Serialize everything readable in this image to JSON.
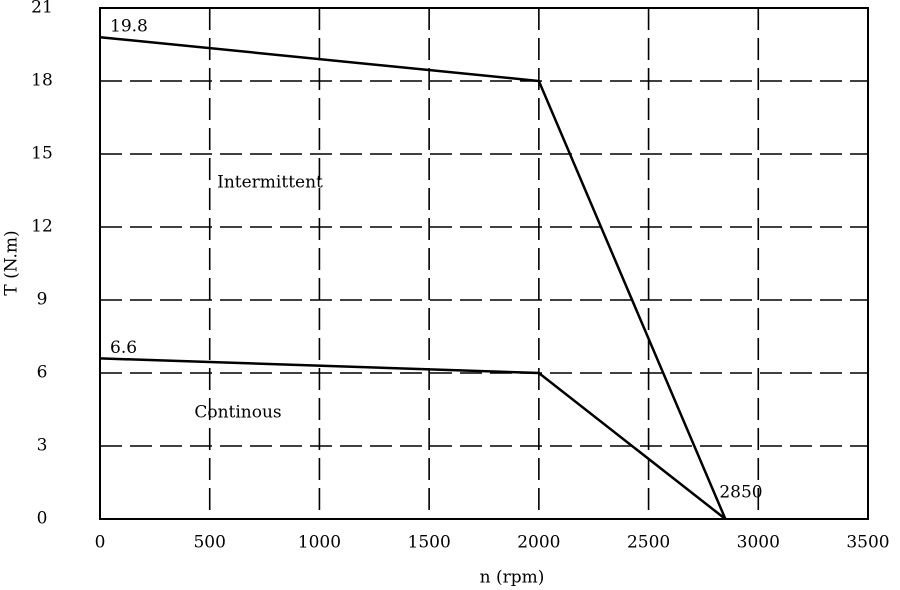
{
  "chart_data": {
    "type": "line",
    "x_label": "n (rpm)",
    "y_label": "T (N.m)",
    "x": [
      0,
      2000,
      2850
    ],
    "series": [
      {
        "name": "Intermittent",
        "color": "#000000",
        "values": [
          19.8,
          18,
          0
        ]
      },
      {
        "name": "Continous",
        "color": "#000000",
        "values": [
          6.6,
          6,
          0
        ]
      }
    ],
    "xlim": [
      0,
      3500
    ],
    "xticks": [
      0,
      500,
      1000,
      1500,
      2000,
      2500,
      3000,
      3500
    ],
    "ylim": [
      0,
      21
    ],
    "yticks": [
      0,
      3,
      6,
      9,
      12,
      15,
      18,
      21
    ],
    "grid": true
  }
}
